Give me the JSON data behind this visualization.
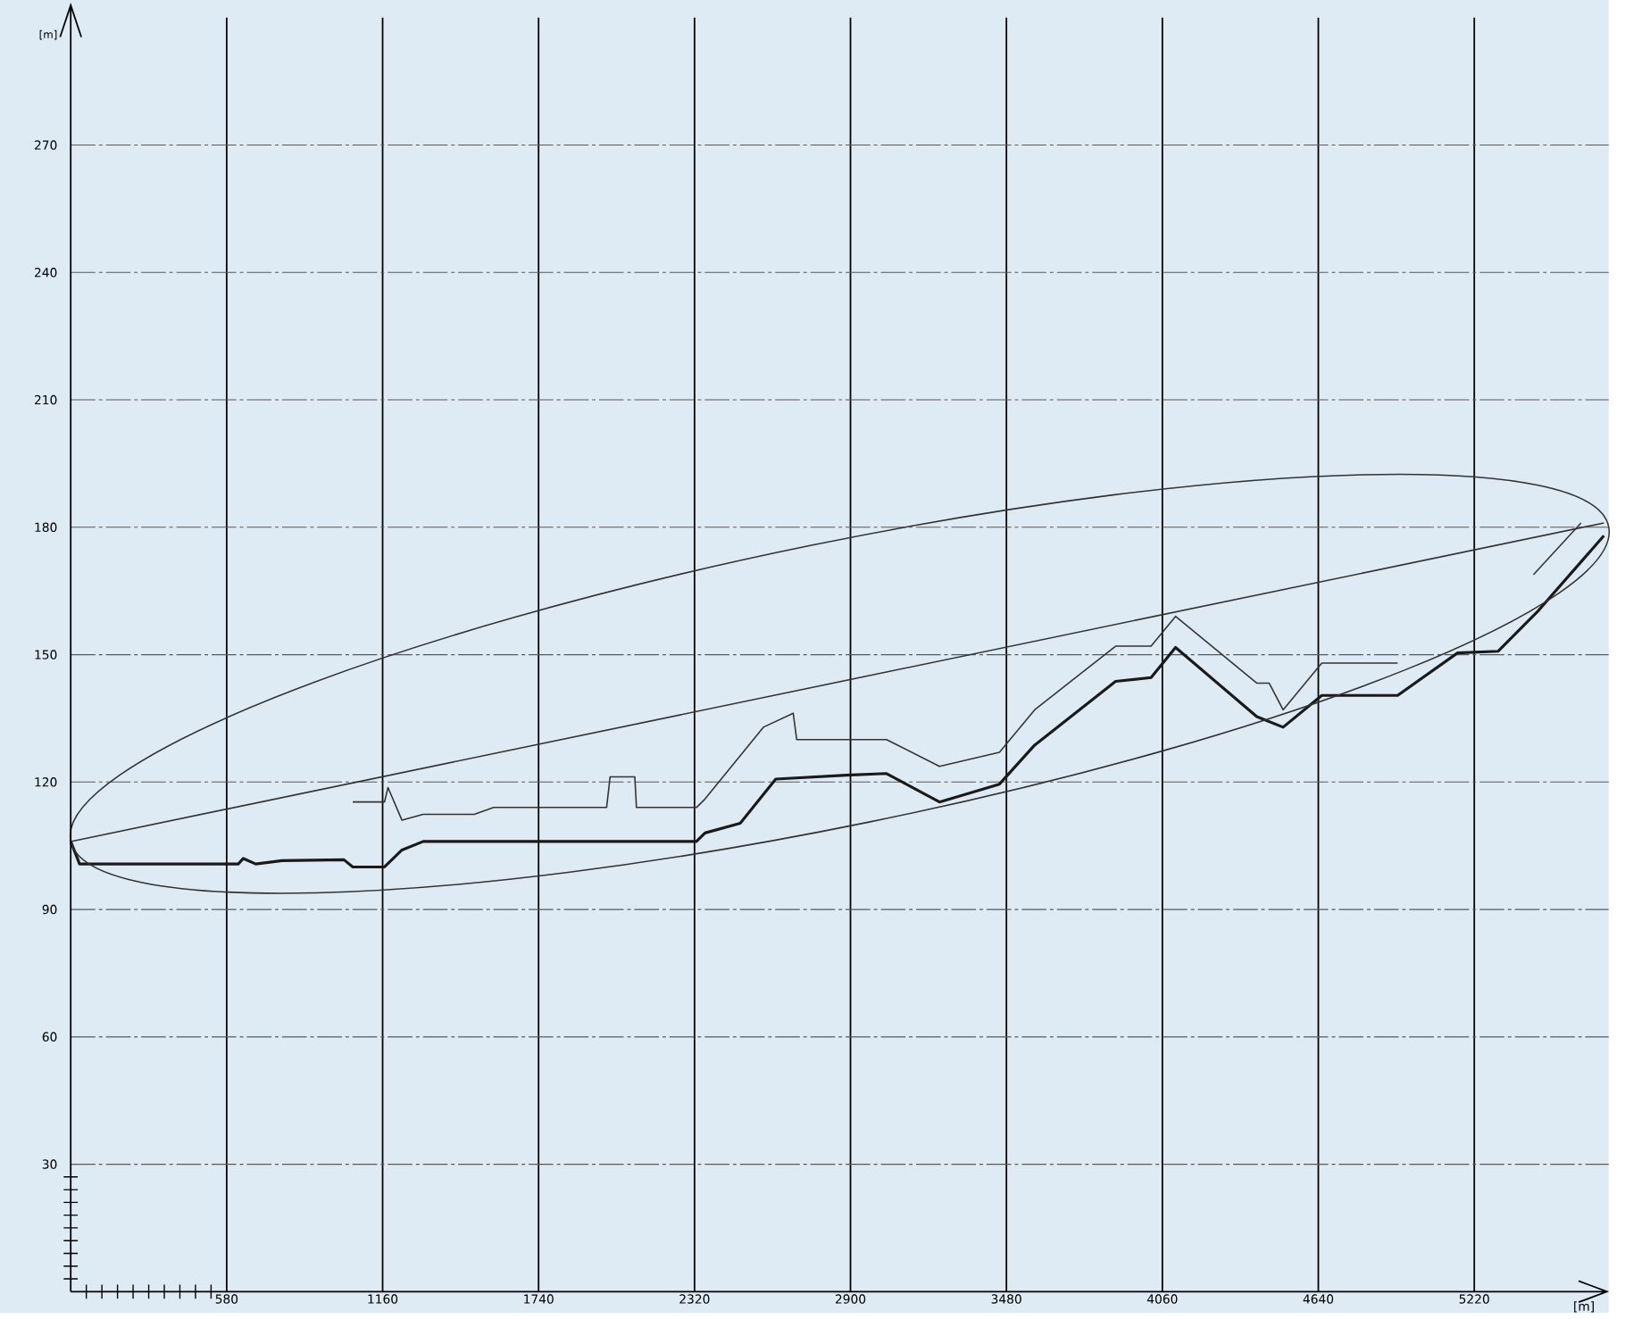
{
  "chart_data": {
    "type": "line",
    "xlabel": "[m]",
    "ylabel": "[m]",
    "xlim": [
      0,
      5720
    ],
    "ylim": [
      0,
      300
    ],
    "xticks": [
      {
        "value": 58,
        "label": null
      },
      {
        "value": 116,
        "label": null
      },
      {
        "value": 174,
        "label": null
      },
      {
        "value": 232,
        "label": null
      },
      {
        "value": 290,
        "label": null
      },
      {
        "value": 348,
        "label": null
      },
      {
        "value": 406,
        "label": null
      },
      {
        "value": 464,
        "label": null
      },
      {
        "value": 522,
        "label": null
      },
      580,
      1160,
      1740,
      2320,
      2900,
      3480,
      4060,
      4640,
      5220
    ],
    "yticks": [
      {
        "value": 3,
        "label": null
      },
      {
        "value": 6,
        "label": null
      },
      {
        "value": 9,
        "label": null
      },
      {
        "value": 12,
        "label": null
      },
      {
        "value": 15,
        "label": null
      },
      {
        "value": 18,
        "label": null
      },
      {
        "value": 21,
        "label": null
      },
      {
        "value": 24,
        "label": null
      },
      {
        "value": 27,
        "label": null
      },
      30,
      60,
      90,
      120,
      150,
      180,
      210,
      240,
      270
    ],
    "grid": true,
    "marker": "none",
    "line_style": "solid",
    "series": [
      {
        "color": "#1a1a1a",
        "x": [
          0,
          33,
          623,
          642,
          688,
          786,
          1016,
          1049,
          1167,
          1232,
          1311,
          2327,
          2359,
          2490,
          2622,
          2884,
          3034,
          3231,
          3454,
          3585,
          3886,
          4018,
          4109,
          4411,
          4509,
          4653,
          4935,
          5158,
          5309,
          5459,
          5702
        ],
        "values": [
          106,
          100.7,
          100.7,
          102,
          100.7,
          101.5,
          101.7,
          100,
          100,
          104,
          106,
          106,
          108,
          110.3,
          120.7,
          121.6,
          122,
          115.3,
          119.5,
          128.7,
          143.7,
          144.6,
          151.7,
          135.4,
          132.9,
          140.4,
          140.4,
          150.4,
          150.8,
          160.4,
          178
        ]
      },
      {
        "color": "#333333",
        "x": [
          1049,
          1167,
          1180,
          1232,
          1311,
          1501,
          1573,
          1993,
          2006,
          2098,
          2104,
          2327,
          2359,
          2576,
          2687,
          2700,
          3034,
          3231,
          3454,
          3585,
          3886,
          4018,
          4109,
          4411,
          4457,
          4509,
          4653,
          4935,
          5200,
          5440,
          5617
        ],
        "values": [
          115.3,
          115.3,
          118.7,
          111,
          112.4,
          112.4,
          114,
          114,
          121.2,
          121.2,
          114,
          114,
          116,
          132.9,
          136.2,
          130,
          130,
          123.7,
          127,
          137,
          152,
          152,
          159,
          143.3,
          143.3,
          137,
          148,
          148,
          null,
          168.8,
          181
        ]
      },
      {
        "color": "#333333",
        "x": [
          0,
          5702
        ],
        "values": [
          106,
          181
        ]
      }
    ]
  }
}
